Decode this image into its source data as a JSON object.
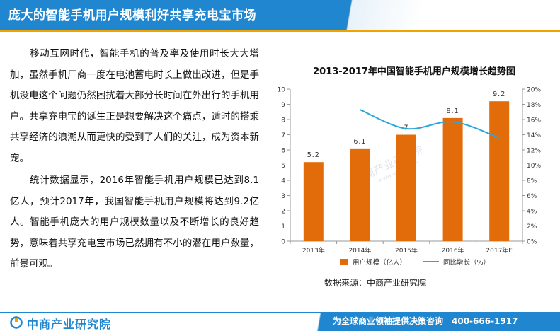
{
  "header": {
    "title": "庞大的智能手机用户规模利好共享充电宝市场"
  },
  "body_text": {
    "para1": "移动互网时代，智能手机的普及率及使用时长大大增加，虽然手机厂商一度在电池蓄电时长上做出改进，但是手机没电这个问题仍然困扰着大部分长时间在外出行的手机用户。共享充电宝的诞生正是想要解决这个痛点，适时的搭乘共享经济的浪潮从而更快的受到了人们的关注，成为资本新宠。",
    "para2": "统计数据显示，2016年智能手机用户规模已达到8.1亿人，预计2017年，我国智能手机用户规模将达到9.2亿人。智能手机庞大的用户规模数量以及不断增长的良好趋势，意味着共享充电宝市场已然拥有不小的潜在用户数量，前景可观。"
  },
  "chart_data": {
    "type": "bar",
    "title": "2013-2017年中国智能手机用户规模增长趋势图",
    "categories": [
      "2013年",
      "2014年",
      "2015年",
      "2016年",
      "2017年E"
    ],
    "series": [
      {
        "name": "用户规模（亿人）",
        "type": "bar",
        "axis": "left",
        "values": [
          5.2,
          6.1,
          7,
          8.1,
          9.2
        ],
        "labels": [
          "5.2",
          "6.1",
          "7",
          "8.1",
          "9.2"
        ],
        "color": "#e36c0a"
      },
      {
        "name": "同比增长（%）",
        "type": "line",
        "axis": "right",
        "values": [
          null,
          17.3,
          14.8,
          15.7,
          13.6
        ],
        "color": "#2da6dc"
      }
    ],
    "left_axis": {
      "min": 0,
      "max": 10,
      "ticks": [
        "0",
        "1",
        "2",
        "3",
        "4",
        "5",
        "6",
        "7",
        "8",
        "9",
        "10"
      ]
    },
    "right_axis": {
      "min": 0,
      "max": 20,
      "ticks": [
        "0%",
        "2%",
        "4%",
        "6%",
        "8%",
        "10%",
        "12%",
        "14%",
        "16%",
        "18%",
        "20%"
      ]
    },
    "grid": false,
    "legend": "bottom",
    "source": "数据来源：中商产业研究院"
  },
  "watermark": {
    "text": "中商产业研究院",
    "sub": "www.askci.com"
  },
  "footer": {
    "logo": "中商产业研究院",
    "slogan": "为全球商业领袖提供决策咨询　400-666-1917"
  },
  "colors": {
    "brand_blue": "#1f86cf",
    "accent_orange": "#f0a400"
  }
}
